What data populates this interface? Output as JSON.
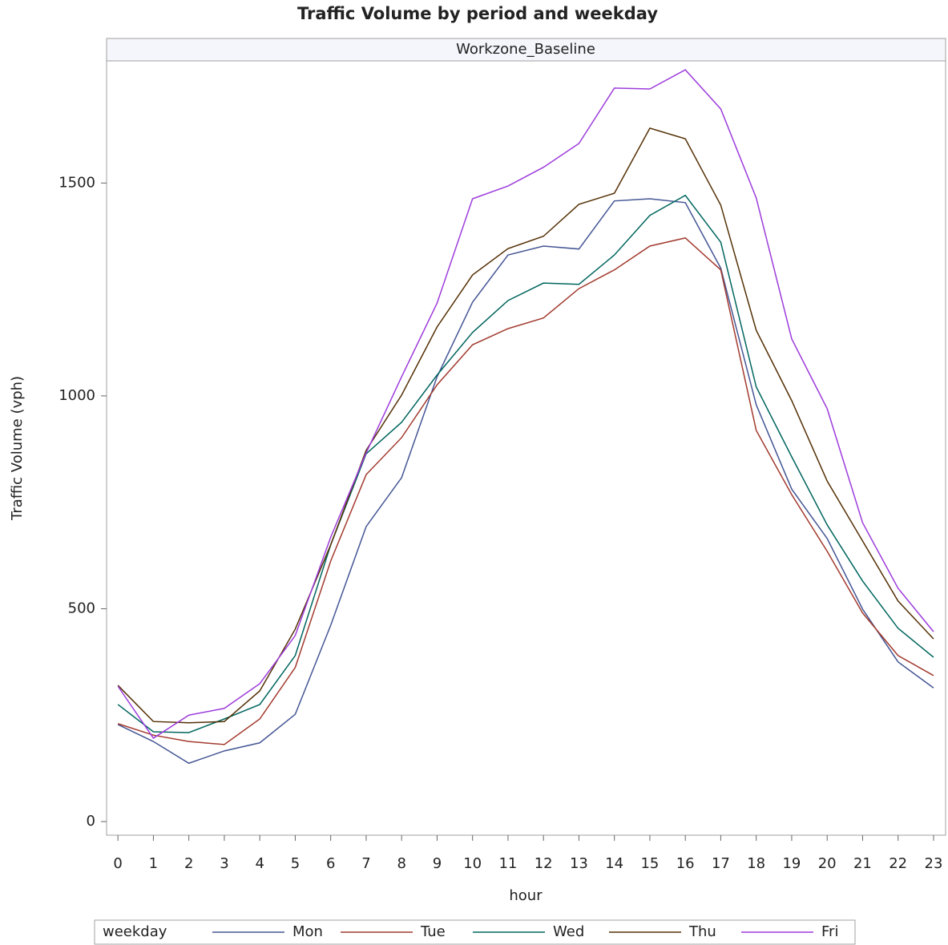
{
  "chart_data": {
    "type": "line",
    "title": "Traffic Volume by period and weekday",
    "panel_label": "Workzone_Baseline",
    "x_label": "hour",
    "y_label": "Traffic Volume (vph)",
    "legend_title": "weekday",
    "x": [
      0,
      1,
      2,
      3,
      4,
      5,
      6,
      7,
      8,
      9,
      10,
      11,
      12,
      13,
      14,
      15,
      16,
      17,
      18,
      19,
      20,
      21,
      22,
      23
    ],
    "xlim": [
      -0.32,
      23.34
    ],
    "xticks": [
      0,
      1,
      2,
      3,
      4,
      5,
      6,
      7,
      8,
      9,
      10,
      11,
      12,
      13,
      14,
      15,
      16,
      17,
      18,
      19,
      20,
      21,
      22,
      23
    ],
    "ylim": [
      -32,
      1785
    ],
    "yticks": [
      0,
      500,
      1000,
      1500
    ],
    "series": [
      {
        "name": "Mon",
        "color": "#445694",
        "values": [
          228,
          188,
          137,
          166,
          185,
          252,
          461,
          693,
          808,
          1045,
          1220,
          1331,
          1352,
          1345,
          1458,
          1463,
          1454,
          1300,
          979,
          781,
          665,
          499,
          375,
          314
        ]
      },
      {
        "name": "Tue",
        "color": "#a23a2e",
        "values": [
          230,
          203,
          188,
          181,
          241,
          362,
          612,
          815,
          902,
          1026,
          1120,
          1158,
          1183,
          1252,
          1296,
          1352,
          1371,
          1296,
          919,
          768,
          635,
          490,
          390,
          343
        ]
      },
      {
        "name": "Wed",
        "color": "#01665e",
        "values": [
          275,
          211,
          209,
          241,
          275,
          390,
          650,
          864,
          938,
          1049,
          1149,
          1224,
          1265,
          1262,
          1331,
          1424,
          1471,
          1361,
          1021,
          857,
          697,
          565,
          454,
          386
        ]
      },
      {
        "name": "Thu",
        "color": "#543005",
        "values": [
          320,
          235,
          232,
          235,
          307,
          452,
          650,
          872,
          1002,
          1162,
          1284,
          1346,
          1375,
          1450,
          1476,
          1629,
          1604,
          1448,
          1154,
          989,
          800,
          659,
          518,
          429
        ]
      },
      {
        "name": "Fri",
        "color": "#9d3cdb",
        "values": [
          318,
          196,
          250,
          266,
          324,
          437,
          668,
          866,
          1045,
          1218,
          1463,
          1493,
          1537,
          1593,
          1723,
          1721,
          1766,
          1674,
          1465,
          1134,
          970,
          702,
          548,
          446
        ]
      }
    ]
  }
}
